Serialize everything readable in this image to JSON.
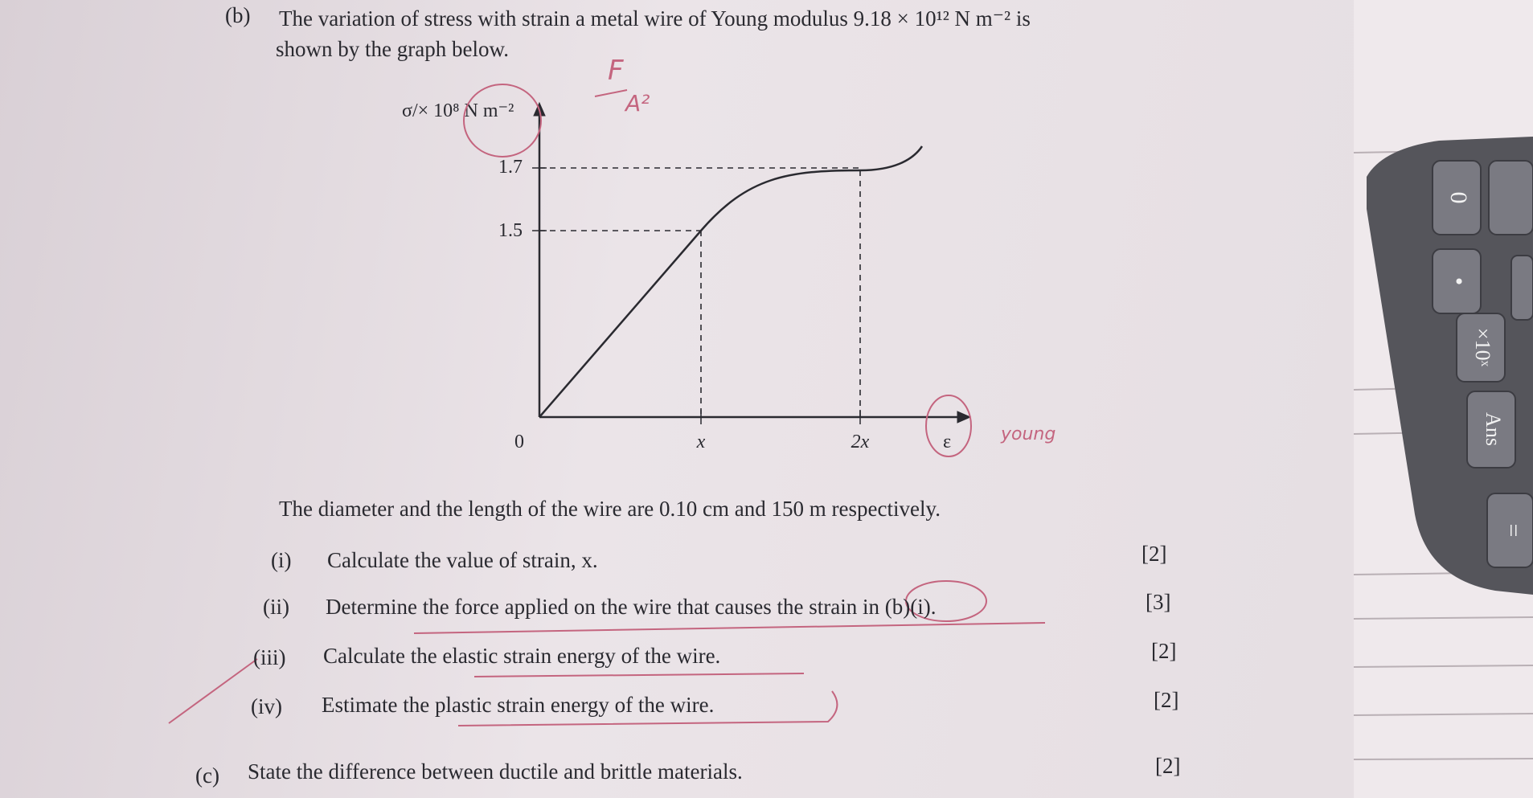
{
  "question_b": {
    "label": "(b)",
    "line1": "The variation of stress with strain a metal wire of Young modulus 9.18 × 10¹² N m⁻² is",
    "line2": "shown by the graph below."
  },
  "graph": {
    "y_label": "σ/× 10⁸ N m⁻²",
    "y_ticks": [
      "1.7",
      "1.5"
    ],
    "origin": "0",
    "x_ticks": [
      "x",
      "2x"
    ],
    "x_label": "ε"
  },
  "given": "The diameter and the length of the wire are 0.10 cm and 150 m respectively.",
  "parts": [
    {
      "label": "(i)",
      "text": "Calculate the value of strain, x.",
      "marks": "[2]"
    },
    {
      "label": "(ii)",
      "text": "Determine the force applied on the wire that causes the strain in (b)(i).",
      "marks": "[3]"
    },
    {
      "label": "(iii)",
      "text": "Calculate the elastic strain energy of the wire.",
      "marks": "[2]"
    },
    {
      "label": "(iv)",
      "text": "Estimate the plastic strain energy of the wire.",
      "marks": "[2]"
    }
  ],
  "question_c": {
    "label": "(c)",
    "text": "State the difference between ductile and brittle materials.",
    "marks": "[2]"
  },
  "handwriting": [
    "F",
    "A²",
    "young"
  ],
  "calculator_keys": [
    "0",
    "•",
    "×10ˣ",
    "Ans",
    "="
  ]
}
